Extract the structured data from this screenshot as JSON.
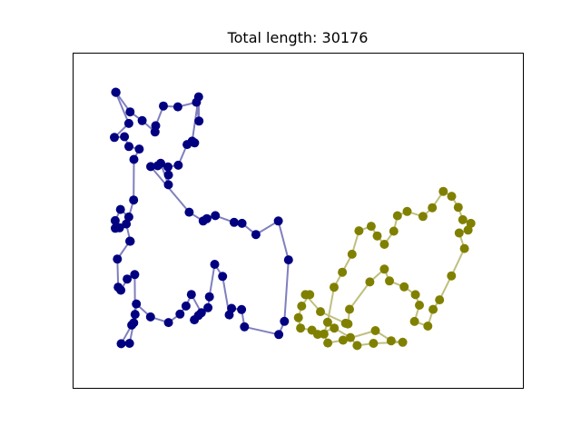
{
  "chart_data": {
    "type": "scatter",
    "title": "Total length: 30176",
    "xlabel": "",
    "ylabel": "",
    "xlim": [
      0,
      10000
    ],
    "ylim": [
      0,
      10000
    ],
    "grid": false,
    "axis_ticks_visible": false,
    "series": [
      {
        "color": "#000080",
        "line_color": "#7f7fbf",
        "points": [
          [
            723,
            9128
          ],
          [
            1053,
            8500
          ],
          [
            1338,
            8216
          ],
          [
            1640,
            7851
          ],
          [
            1656,
            8054
          ],
          [
            1838,
            8689
          ],
          [
            2178,
            8662
          ],
          [
            2616,
            8810
          ],
          [
            2676,
            8203
          ],
          [
            2666,
            8986
          ],
          [
            2515,
            7554
          ],
          [
            2573,
            7500
          ],
          [
            2396,
            7445
          ],
          [
            2189,
            6776
          ],
          [
            1945,
            6725
          ],
          [
            1957,
            6464
          ],
          [
            1956,
            6148
          ],
          [
            1773,
            6840
          ],
          [
            1703,
            6760
          ],
          [
            1538,
            6733
          ],
          [
            2445,
            5262
          ],
          [
            2774,
            4976
          ],
          [
            2862,
            5052
          ],
          [
            3060,
            5150
          ],
          [
            3502,
            4934
          ],
          [
            3687,
            4900
          ],
          [
            4016,
            4540
          ],
          [
            4542,
            4976
          ],
          [
            4782,
            3722
          ],
          [
            4686,
            1737
          ],
          [
            4554,
            1311
          ],
          [
            3746,
            1559
          ],
          [
            3677,
            2118
          ],
          [
            3442,
            2155
          ],
          [
            3386,
            1946
          ],
          [
            3230,
            3187
          ],
          [
            3044,
            3578
          ],
          [
            2922,
            2530
          ],
          [
            2887,
            2175
          ],
          [
            2662,
            1928
          ],
          [
            2566,
            1787
          ],
          [
            2730,
            2015
          ],
          [
            2496,
            2604
          ],
          [
            2370,
            2231
          ],
          [
            2228,
            1971
          ],
          [
            1958,
            1697
          ],
          [
            1535,
            1881
          ],
          [
            1200,
            2299
          ],
          [
            1139,
            1690
          ],
          [
            1041,
            1026
          ],
          [
            845,
            1015
          ],
          [
            1092,
            1616
          ],
          [
            1172,
            1961
          ],
          [
            1163,
            3246
          ],
          [
            985,
            3103
          ],
          [
            835,
            2741
          ],
          [
            773,
            2839
          ],
          [
            755,
            3747
          ],
          [
            1047,
            4326
          ],
          [
            1058,
            4324
          ],
          [
            964,
            4879
          ],
          [
            805,
            4757
          ],
          [
            706,
            4741
          ],
          [
            702,
            4989
          ],
          [
            827,
            5349
          ],
          [
            1023,
            5105
          ],
          [
            1136,
            5654
          ],
          [
            1144,
            6964
          ],
          [
            1269,
            7299
          ],
          [
            1025,
            7382
          ],
          [
            921,
            7698
          ],
          [
            684,
            7675
          ],
          [
            1024,
            8125
          ],
          [
            714,
            9135
          ]
        ]
      },
      {
        "color": "#808000",
        "line_color": "#bfbf7f",
        "points": [
          [
            5181,
            2599
          ],
          [
            5534,
            2051
          ],
          [
            6125,
            1675
          ],
          [
            6183,
            1655
          ],
          [
            6217,
            2126
          ],
          [
            6697,
            3008
          ],
          [
            7039,
            3423
          ],
          [
            7158,
            3041
          ],
          [
            7504,
            2849
          ],
          [
            7769,
            2599
          ],
          [
            7863,
            2259
          ],
          [
            7748,
            1734
          ],
          [
            8063,
            1584
          ],
          [
            8186,
            2123
          ],
          [
            8338,
            2432
          ],
          [
            8618,
            3205
          ],
          [
            8924,
            4088
          ],
          [
            8799,
            4590
          ],
          [
            9009,
            4682
          ],
          [
            9074,
            4899
          ],
          [
            8884,
            5019
          ],
          [
            8777,
            5418
          ],
          [
            8622,
            5775
          ],
          [
            8425,
            5932
          ],
          [
            8167,
            5406
          ],
          [
            7946,
            5123
          ],
          [
            7574,
            5285
          ],
          [
            7346,
            5147
          ],
          [
            7261,
            4649
          ],
          [
            7038,
            4222
          ],
          [
            6870,
            4497
          ],
          [
            6728,
            4806
          ],
          [
            6440,
            4659
          ],
          [
            6278,
            3903
          ],
          [
            6049,
            3323
          ],
          [
            5854,
            2840
          ],
          [
            5703,
            1707
          ],
          [
            5618,
            1329
          ],
          [
            5707,
            1038
          ],
          [
            6066,
            1130
          ],
          [
            6826,
            1438
          ],
          [
            7198,
            1108
          ],
          [
            7470,
            1063
          ],
          [
            6782,
            1026
          ],
          [
            6397,
            956
          ],
          [
            6240,
            1213
          ],
          [
            5860,
            1519
          ],
          [
            5468,
            1318
          ],
          [
            5334,
            1452
          ],
          [
            5066,
            1519
          ],
          [
            5016,
            1856
          ],
          [
            5092,
            2228
          ],
          [
            5282,
            2599
          ],
          [
            5181,
            2599
          ]
        ]
      }
    ]
  }
}
